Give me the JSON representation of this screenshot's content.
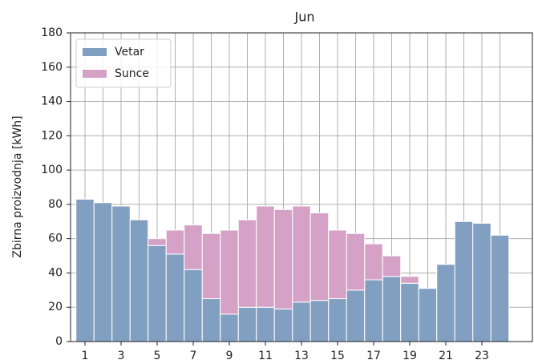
{
  "chart_data": {
    "type": "stacked_bar",
    "title": "Jun",
    "y_label": "Zbirna proizvodnja [kWh]",
    "categories": [
      1,
      null,
      3,
      null,
      5,
      null,
      7,
      null,
      9,
      null,
      11,
      null,
      13,
      null,
      15,
      null,
      17,
      null,
      19,
      null,
      21,
      null,
      23,
      null
    ],
    "series": [
      {
        "name": "Vetar",
        "color": "#819fc0",
        "values": [
          83,
          81,
          79,
          71,
          56,
          51,
          42,
          25,
          16,
          20,
          20,
          19,
          23,
          24,
          25,
          30,
          36,
          38,
          34,
          31,
          45,
          70,
          69,
          62
        ]
      },
      {
        "name": "Sunce",
        "color": "#d5a1c6",
        "values": [
          0,
          0,
          0,
          0,
          4,
          14,
          26,
          38,
          49,
          51,
          59,
          58,
          56,
          51,
          40,
          33,
          21,
          12,
          4,
          0,
          0,
          0,
          0,
          0
        ]
      }
    ],
    "ylim": [
      0,
      180
    ],
    "yticks": [
      0,
      20,
      40,
      60,
      80,
      100,
      120,
      140,
      160,
      180
    ],
    "grid": true,
    "legend": "upper left"
  }
}
